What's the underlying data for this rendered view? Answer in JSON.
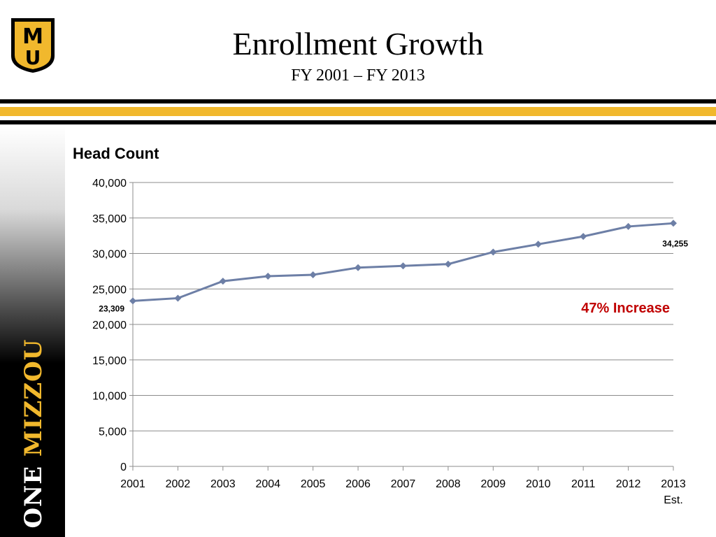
{
  "slide": {
    "title": "Enrollment Growth",
    "subtitle": "FY 2001 – FY 2013",
    "logo_text": "MU",
    "brand_one": "ONE",
    "brand_mizzou": "MIZZOU",
    "colors": {
      "gold": "#f1b82d",
      "black": "#000000"
    }
  },
  "chart_data": {
    "type": "line",
    "title": "Head Count",
    "categories": [
      "2001",
      "2002",
      "2003",
      "2004",
      "2005",
      "2006",
      "2007",
      "2008",
      "2009",
      "2010",
      "2011",
      "2012",
      "2013"
    ],
    "last_category_sub": "Est.",
    "series": [
      {
        "values": [
          23309,
          23700,
          26100,
          26800,
          27000,
          28000,
          28250,
          28500,
          30200,
          31300,
          32400,
          33800,
          34255
        ],
        "color": "#6d7fa6"
      }
    ],
    "ylim": [
      0,
      40000
    ],
    "yticks": [
      0,
      5000,
      10000,
      15000,
      20000,
      25000,
      30000,
      35000,
      40000
    ],
    "grid": true,
    "data_labels": [
      {
        "index": 0,
        "text": "23,309"
      },
      {
        "index": 12,
        "text": "34,255"
      }
    ],
    "annotation": {
      "text": "47% Increase",
      "color": "#c00000"
    }
  }
}
